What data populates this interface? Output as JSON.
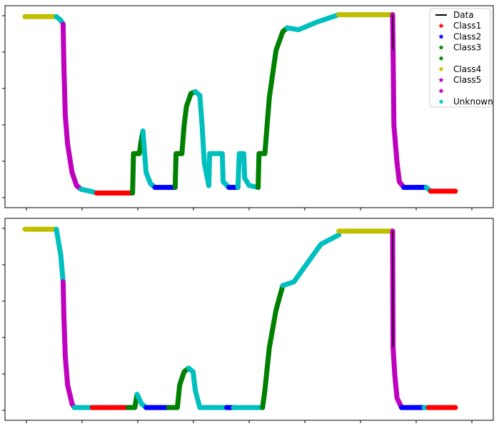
{
  "chart_data": [
    {
      "type": "line",
      "grid": false,
      "ylim": [
        0,
        1
      ],
      "xlim": [
        0,
        1
      ],
      "legend": {
        "placement": "top-right",
        "entries": [
          {
            "label": "Data",
            "color": "#000000",
            "marker": "line"
          },
          {
            "label": "Class1",
            "color": "#ff0000",
            "marker": "star"
          },
          {
            "label": "Class2",
            "color": "#0000ff",
            "marker": "star"
          },
          {
            "label": "Class3",
            "color": "#008000",
            "marker": "star"
          },
          {
            "label": "",
            "color": "#008000",
            "marker": "star"
          },
          {
            "label": "Class4",
            "color": "#bfbf00",
            "marker": "star"
          },
          {
            "label": "Class5",
            "color": "#bf00bf",
            "marker": "star"
          },
          {
            "label": "",
            "color": "#bf00bf",
            "marker": "star"
          },
          {
            "label": "Unknown",
            "color": "#00bfbf",
            "marker": "star"
          }
        ]
      },
      "series": [
        {
          "color": "#bfbf00",
          "points": [
            [
              0.0,
              0.98
            ],
            [
              0.07,
              0.98
            ]
          ]
        },
        {
          "color": "#00bfbf",
          "points": [
            [
              0.07,
              0.98
            ],
            [
              0.08,
              0.96
            ],
            [
              0.085,
              0.94
            ]
          ]
        },
        {
          "color": "#bf00bf",
          "points": [
            [
              0.085,
              0.94
            ],
            [
              0.087,
              0.7
            ],
            [
              0.09,
              0.45
            ],
            [
              0.095,
              0.3
            ],
            [
              0.105,
              0.15
            ],
            [
              0.115,
              0.08
            ],
            [
              0.125,
              0.06
            ]
          ]
        },
        {
          "color": "#00bfbf",
          "points": [
            [
              0.125,
              0.06
            ],
            [
              0.145,
              0.05
            ],
            [
              0.16,
              0.04
            ]
          ]
        },
        {
          "color": "#ff0000",
          "points": [
            [
              0.16,
              0.04
            ],
            [
              0.24,
              0.04
            ]
          ]
        },
        {
          "color": "#008000",
          "points": [
            [
              0.24,
              0.04
            ],
            [
              0.242,
              0.25
            ],
            [
              0.255,
              0.25
            ],
            [
              0.26,
              0.33
            ],
            [
              0.263,
              0.37
            ]
          ]
        },
        {
          "color": "#00bfbf",
          "points": [
            [
              0.263,
              0.37
            ],
            [
              0.27,
              0.15
            ],
            [
              0.28,
              0.09
            ],
            [
              0.29,
              0.07
            ]
          ]
        },
        {
          "color": "#0000ff",
          "points": [
            [
              0.29,
              0.07
            ],
            [
              0.335,
              0.07
            ]
          ]
        },
        {
          "color": "#008000",
          "points": [
            [
              0.335,
              0.07
            ],
            [
              0.337,
              0.25
            ],
            [
              0.35,
              0.25
            ],
            [
              0.355,
              0.4
            ],
            [
              0.36,
              0.5
            ],
            [
              0.37,
              0.57
            ],
            [
              0.38,
              0.58
            ]
          ]
        },
        {
          "color": "#00bfbf",
          "points": [
            [
              0.38,
              0.58
            ],
            [
              0.39,
              0.56
            ],
            [
              0.395,
              0.4
            ],
            [
              0.4,
              0.2
            ],
            [
              0.41,
              0.08
            ]
          ]
        },
        {
          "color": "#00bfbf",
          "points": [
            [
              0.41,
              0.08
            ],
            [
              0.412,
              0.25
            ],
            [
              0.44,
              0.25
            ],
            [
              0.442,
              0.1
            ],
            [
              0.455,
              0.07
            ]
          ]
        },
        {
          "color": "#0000ff",
          "points": [
            [
              0.455,
              0.07
            ],
            [
              0.475,
              0.07
            ]
          ]
        },
        {
          "color": "#00bfbf",
          "points": [
            [
              0.475,
              0.07
            ],
            [
              0.478,
              0.25
            ],
            [
              0.488,
              0.25
            ],
            [
              0.49,
              0.12
            ],
            [
              0.5,
              0.08
            ],
            [
              0.52,
              0.07
            ]
          ]
        },
        {
          "color": "#008000",
          "points": [
            [
              0.52,
              0.07
            ],
            [
              0.522,
              0.25
            ],
            [
              0.535,
              0.25
            ],
            [
              0.545,
              0.55
            ],
            [
              0.56,
              0.8
            ],
            [
              0.575,
              0.9
            ],
            [
              0.585,
              0.92
            ]
          ]
        },
        {
          "color": "#00bfbf",
          "points": [
            [
              0.585,
              0.92
            ],
            [
              0.61,
              0.91
            ],
            [
              0.65,
              0.95
            ],
            [
              0.7,
              0.99
            ]
          ]
        },
        {
          "color": "#bfbf00",
          "points": [
            [
              0.7,
              0.99
            ],
            [
              0.82,
              0.99
            ]
          ]
        },
        {
          "color": "#bf00bf",
          "points": [
            [
              0.82,
              0.99
            ],
            [
              0.821,
              0.8
            ],
            [
              0.823,
              0.4
            ],
            [
              0.83,
              0.2
            ],
            [
              0.835,
              0.1
            ],
            [
              0.845,
              0.07
            ]
          ]
        },
        {
          "color": "#0000ff",
          "points": [
            [
              0.845,
              0.07
            ],
            [
              0.895,
              0.07
            ]
          ]
        },
        {
          "color": "#00bfbf",
          "points": [
            [
              0.895,
              0.07
            ],
            [
              0.905,
              0.05
            ]
          ]
        },
        {
          "color": "#ff0000",
          "points": [
            [
              0.905,
              0.05
            ],
            [
              0.96,
              0.05
            ]
          ]
        },
        {
          "color": "#000000",
          "points": [
            [
              0.82,
              0.99
            ],
            [
              0.821,
              0.8
            ]
          ]
        }
      ]
    },
    {
      "type": "line",
      "grid": false,
      "ylim": [
        0,
        1
      ],
      "xlim": [
        0,
        1
      ],
      "series": [
        {
          "color": "#bfbf00",
          "points": [
            [
              0.0,
              0.98
            ],
            [
              0.07,
              0.98
            ]
          ]
        },
        {
          "color": "#00bfbf",
          "points": [
            [
              0.07,
              0.98
            ],
            [
              0.08,
              0.84
            ],
            [
              0.085,
              0.7
            ]
          ]
        },
        {
          "color": "#bf00bf",
          "points": [
            [
              0.085,
              0.7
            ],
            [
              0.087,
              0.5
            ],
            [
              0.09,
              0.3
            ],
            [
              0.095,
              0.15
            ],
            [
              0.105,
              0.05
            ],
            [
              0.11,
              0.03
            ]
          ]
        },
        {
          "color": "#00bfbf",
          "points": [
            [
              0.11,
              0.03
            ],
            [
              0.15,
              0.03
            ]
          ]
        },
        {
          "color": "#ff0000",
          "points": [
            [
              0.15,
              0.03
            ],
            [
              0.23,
              0.03
            ]
          ]
        },
        {
          "color": "#008000",
          "points": [
            [
              0.23,
              0.03
            ],
            [
              0.245,
              0.03
            ],
            [
              0.25,
              0.1
            ]
          ]
        },
        {
          "color": "#00bfbf",
          "points": [
            [
              0.25,
              0.1
            ],
            [
              0.26,
              0.05
            ],
            [
              0.27,
              0.03
            ]
          ]
        },
        {
          "color": "#0000ff",
          "points": [
            [
              0.27,
              0.03
            ],
            [
              0.32,
              0.03
            ]
          ]
        },
        {
          "color": "#008000",
          "points": [
            [
              0.32,
              0.03
            ],
            [
              0.34,
              0.03
            ],
            [
              0.345,
              0.15
            ],
            [
              0.355,
              0.22
            ],
            [
              0.365,
              0.24
            ]
          ]
        },
        {
          "color": "#00bfbf",
          "points": [
            [
              0.365,
              0.24
            ],
            [
              0.375,
              0.22
            ],
            [
              0.38,
              0.12
            ],
            [
              0.39,
              0.03
            ],
            [
              0.45,
              0.03
            ]
          ]
        },
        {
          "color": "#0000ff",
          "points": [
            [
              0.45,
              0.03
            ],
            [
              0.465,
              0.03
            ]
          ]
        },
        {
          "color": "#00bfbf",
          "points": [
            [
              0.465,
              0.03
            ],
            [
              0.53,
              0.03
            ]
          ]
        },
        {
          "color": "#008000",
          "points": [
            [
              0.53,
              0.03
            ],
            [
              0.535,
              0.12
            ],
            [
              0.545,
              0.35
            ],
            [
              0.56,
              0.55
            ],
            [
              0.575,
              0.68
            ]
          ]
        },
        {
          "color": "#00bfbf",
          "points": [
            [
              0.575,
              0.68
            ],
            [
              0.6,
              0.7
            ],
            [
              0.63,
              0.8
            ],
            [
              0.66,
              0.9
            ],
            [
              0.7,
              0.95
            ]
          ]
        },
        {
          "color": "#bfbf00",
          "points": [
            [
              0.7,
              0.97
            ],
            [
              0.82,
              0.97
            ]
          ]
        },
        {
          "color": "#bf00bf",
          "points": [
            [
              0.82,
              0.97
            ],
            [
              0.821,
              0.35
            ],
            [
              0.825,
              0.2
            ],
            [
              0.83,
              0.08
            ],
            [
              0.84,
              0.03
            ]
          ]
        },
        {
          "color": "#0000ff",
          "points": [
            [
              0.84,
              0.03
            ],
            [
              0.89,
              0.03
            ]
          ]
        },
        {
          "color": "#00bfbf",
          "points": [
            [
              0.89,
              0.03
            ],
            [
              0.9,
              0.03
            ]
          ]
        },
        {
          "color": "#ff0000",
          "points": [
            [
              0.9,
              0.03
            ],
            [
              0.96,
              0.03
            ]
          ]
        },
        {
          "color": "#000000",
          "points": [
            [
              0.82,
              0.97
            ],
            [
              0.821,
              0.35
            ]
          ]
        }
      ]
    }
  ]
}
